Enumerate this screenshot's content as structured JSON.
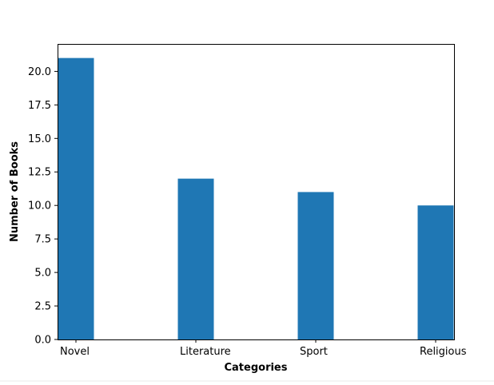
{
  "chart_data": {
    "type": "bar",
    "categories": [
      "Novel",
      "Literature",
      "Sport",
      "Religious"
    ],
    "values": [
      21,
      12,
      11,
      10
    ],
    "xlabel": "Categories",
    "ylabel": "Number of Books",
    "ylim": [
      0,
      22.05
    ],
    "yticks": [
      0.0,
      2.5,
      5.0,
      7.5,
      10.0,
      12.5,
      15.0,
      17.5,
      20.0
    ],
    "ytick_labels": [
      "0.0",
      "2.5",
      "5.0",
      "7.5",
      "10.0",
      "12.5",
      "15.0",
      "17.5",
      "20.0"
    ],
    "bar_color": "#1f77b4",
    "grid": false,
    "legend": "none"
  }
}
